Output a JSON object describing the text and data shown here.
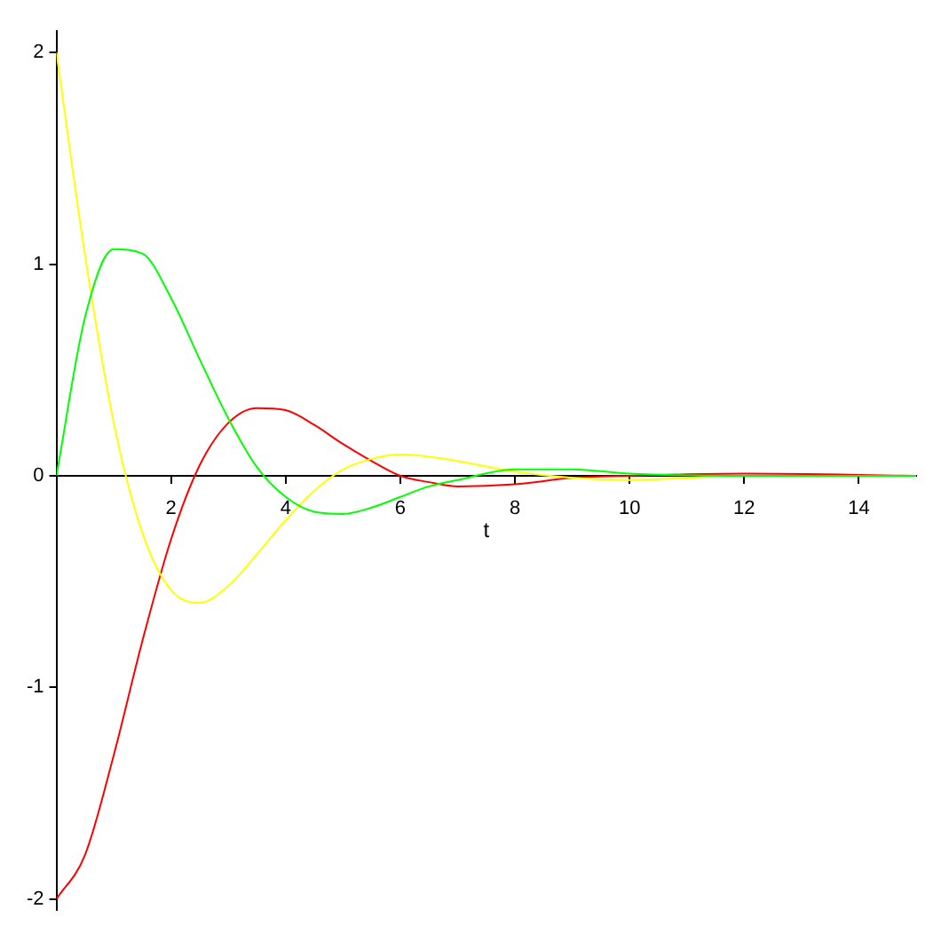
{
  "chart_data": {
    "type": "line",
    "xlabel": "t",
    "x": [
      0,
      0.5,
      1,
      1.5,
      2,
      2.5,
      3,
      3.5,
      4,
      4.5,
      5,
      5.5,
      6,
      6.5,
      7,
      8,
      9,
      10,
      12,
      15
    ],
    "series": [
      {
        "color": "#00ff00",
        "values": [
          0,
          0.75,
          1.07,
          1.05,
          0.84,
          0.55,
          0.27,
          0.04,
          -0.1,
          -0.17,
          -0.18,
          -0.15,
          -0.1,
          -0.05,
          -0.02,
          0.03,
          0.03,
          0.01,
          0,
          0
        ]
      },
      {
        "color": "#ffff00",
        "values": [
          2,
          1.04,
          0.25,
          -0.27,
          -0.54,
          -0.6,
          -0.52,
          -0.37,
          -0.21,
          -0.07,
          0.03,
          0.08,
          0.1,
          0.09,
          0.07,
          0.02,
          -0.01,
          -0.02,
          0,
          0
        ]
      },
      {
        "color": "#ff0000",
        "values": [
          -2,
          -1.79,
          -1.32,
          -0.78,
          -0.3,
          0.05,
          0.25,
          0.32,
          0.31,
          0.24,
          0.15,
          0.07,
          0,
          -0.03,
          -0.05,
          -0.04,
          -0.01,
          0,
          0.01,
          0
        ]
      }
    ],
    "xlim": [
      0,
      15
    ],
    "ylim": [
      -2.05,
      2.1
    ],
    "xticks": [
      2,
      4,
      6,
      8,
      10,
      12,
      14
    ],
    "yticks": [
      -2,
      -1,
      0,
      1,
      2
    ],
    "grid": false,
    "legend": false,
    "marker": "none",
    "line_style": "solid"
  }
}
